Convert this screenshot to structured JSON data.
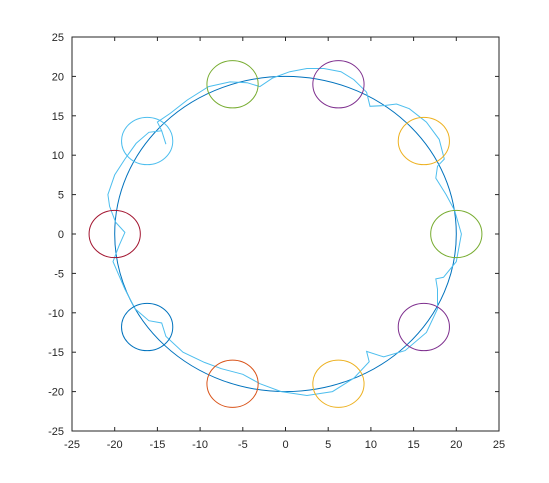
{
  "chart_data": {
    "type": "line",
    "title": "",
    "xlabel": "",
    "ylabel": "",
    "xlim": [
      -25,
      25
    ],
    "ylim": [
      -25,
      25
    ],
    "xticks": [
      -25,
      -20,
      -15,
      -10,
      -5,
      0,
      5,
      10,
      15,
      20,
      25
    ],
    "yticks": [
      -25,
      -20,
      -15,
      -10,
      -5,
      0,
      5,
      10,
      15,
      20,
      25
    ],
    "grid": true,
    "legend": "none",
    "series": [
      {
        "kind": "circle",
        "center": [
          0,
          0
        ],
        "radius": 20,
        "color": "#0072bd"
      },
      {
        "kind": "path",
        "color": "#4dbeee",
        "points": [
          [
            -14.0,
            11.4
          ],
          [
            -14.5,
            13.1
          ],
          [
            -15.0,
            14.2
          ],
          [
            -13.5,
            15.3
          ],
          [
            -11.5,
            17.0
          ],
          [
            -9.0,
            18.7
          ],
          [
            -6.5,
            19.3
          ],
          [
            -4.5,
            19.2
          ],
          [
            -3.0,
            18.7
          ],
          [
            -1.5,
            19.8
          ],
          [
            0.5,
            20.6
          ],
          [
            2.5,
            21.0
          ],
          [
            4.5,
            21.0
          ],
          [
            6.5,
            20.6
          ],
          [
            8.0,
            19.6
          ],
          [
            9.5,
            18.0
          ],
          [
            9.9,
            16.2
          ],
          [
            11.5,
            16.3
          ],
          [
            13.0,
            16.5
          ],
          [
            14.5,
            15.9
          ],
          [
            16.5,
            14.2
          ],
          [
            18.0,
            12.0
          ],
          [
            18.6,
            9.5
          ],
          [
            17.8,
            8.6
          ],
          [
            17.6,
            7.1
          ],
          [
            18.8,
            5.0
          ],
          [
            19.8,
            3.0
          ],
          [
            20.6,
            0.0
          ],
          [
            20.0,
            -3.5
          ],
          [
            18.5,
            -5.5
          ],
          [
            17.6,
            -5.7
          ],
          [
            17.8,
            -7.0
          ],
          [
            17.8,
            -9.5
          ],
          [
            16.5,
            -12.5
          ],
          [
            14.0,
            -14.8
          ],
          [
            11.5,
            -15.6
          ],
          [
            9.5,
            -14.9
          ],
          [
            9.8,
            -16.2
          ],
          [
            8.0,
            -18.3
          ],
          [
            5.5,
            -20.0
          ],
          [
            2.5,
            -20.5
          ],
          [
            -0.5,
            -20.0
          ],
          [
            -3.0,
            -19.0
          ],
          [
            -5.0,
            -17.8
          ],
          [
            -7.5,
            -17.1
          ],
          [
            -9.5,
            -16.3
          ],
          [
            -12.0,
            -15.0
          ],
          [
            -14.0,
            -13.0
          ],
          [
            -14.5,
            -11.3
          ],
          [
            -16.0,
            -11.0
          ],
          [
            -17.6,
            -9.5
          ],
          [
            -18.8,
            -7.0
          ],
          [
            -20.2,
            -3.5
          ],
          [
            -19.5,
            -1.5
          ],
          [
            -18.8,
            0.2
          ],
          [
            -19.9,
            1.5
          ],
          [
            -20.6,
            3.5
          ],
          [
            -20.8,
            5.0
          ],
          [
            -20.0,
            7.5
          ],
          [
            -18.8,
            9.5
          ],
          [
            -17.5,
            11.5
          ],
          [
            -16.0,
            12.9
          ],
          [
            -14.5,
            13.1
          ]
        ]
      },
      {
        "kind": "circle",
        "center": [
          -6.2,
          19.0
        ],
        "radius": 3,
        "color": "#77ac30"
      },
      {
        "kind": "circle",
        "center": [
          6.2,
          19.0
        ],
        "radius": 3,
        "color": "#7e2f8e"
      },
      {
        "kind": "circle",
        "center": [
          16.2,
          11.8
        ],
        "radius": 3,
        "color": "#edb120"
      },
      {
        "kind": "circle",
        "center": [
          20.0,
          0.0
        ],
        "radius": 3,
        "color": "#77ac30"
      },
      {
        "kind": "circle",
        "center": [
          16.2,
          -11.8
        ],
        "radius": 3,
        "color": "#7e2f8e"
      },
      {
        "kind": "circle",
        "center": [
          6.2,
          -19.0
        ],
        "radius": 3,
        "color": "#edb120"
      },
      {
        "kind": "circle",
        "center": [
          -6.2,
          -19.0
        ],
        "radius": 3,
        "color": "#d95319"
      },
      {
        "kind": "circle",
        "center": [
          -16.2,
          -11.8
        ],
        "radius": 3,
        "color": "#0072bd"
      },
      {
        "kind": "circle",
        "center": [
          -20.0,
          0.0
        ],
        "radius": 3,
        "color": "#a2142f"
      },
      {
        "kind": "circle",
        "center": [
          -16.2,
          11.8
        ],
        "radius": 3,
        "color": "#4dbeee"
      }
    ]
  }
}
